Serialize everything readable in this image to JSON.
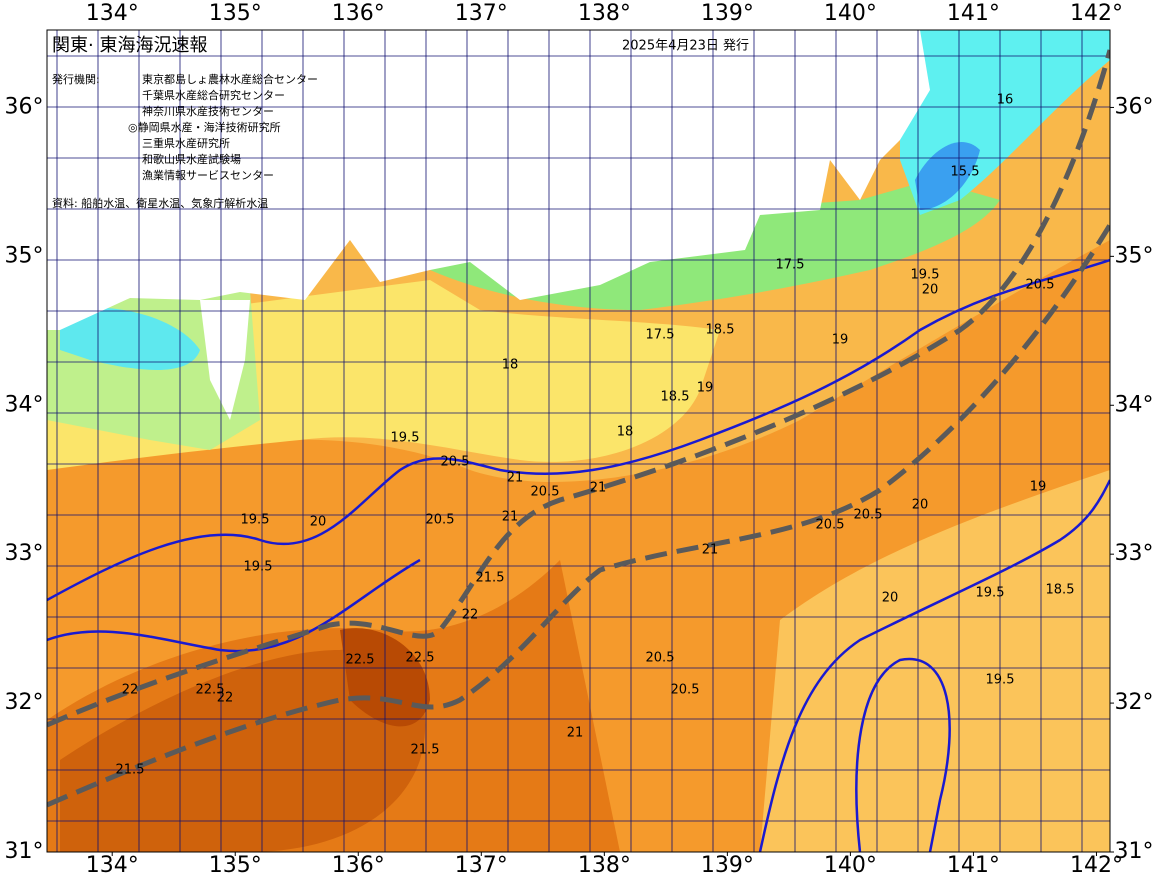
{
  "map": {
    "title": "関東· 東海海況速報",
    "date": "2025年4月23日 発行",
    "issuer_label": "発行機関:",
    "issuers": [
      "東京都島しょ農林水産総合センター",
      "千葉県水産総合研究センター",
      "神奈川県水産技術センター",
      "◎静岡県水産・海洋技術研究所",
      "三重県水産研究所",
      "和歌山県水産試験場",
      "漁業情報サービスセンター"
    ],
    "source": "資料: 船舶水温、衛星水温、気象庁解析水温",
    "xlim": [
      133.47,
      142.11
    ],
    "ylim": [
      31,
      36.52
    ],
    "xticks": [
      {
        "value": 134,
        "label": "134°"
      },
      {
        "value": 135,
        "label": "135°"
      },
      {
        "value": 136,
        "label": "136°"
      },
      {
        "value": 137,
        "label": "137°"
      },
      {
        "value": 138,
        "label": "138°"
      },
      {
        "value": 139,
        "label": "139°"
      },
      {
        "value": 140,
        "label": "140°"
      },
      {
        "value": 141,
        "label": "141°"
      },
      {
        "value": 142,
        "label": "142°"
      }
    ],
    "yticks": [
      {
        "value": 31,
        "label": "31°"
      },
      {
        "value": 32,
        "label": "32°"
      },
      {
        "value": 33,
        "label": "33°"
      },
      {
        "value": 34,
        "label": "34°"
      },
      {
        "value": 35,
        "label": "35°"
      },
      {
        "value": 36,
        "label": "36°"
      }
    ],
    "contour_labels": [
      "16",
      "15.5",
      "19.5",
      "20",
      "20.5",
      "17.5",
      "18",
      "18.5",
      "19",
      "17.5",
      "18.5",
      "19",
      "18",
      "19.5",
      "20.5",
      "21",
      "20.5",
      "21",
      "19.5",
      "19.5",
      "20",
      "20.5",
      "21",
      "21.5",
      "22",
      "22.5",
      "22.5",
      "22",
      "22.5",
      "21.5",
      "21",
      "20.5",
      "20.5",
      "20",
      "19.5",
      "19.5",
      "18.5",
      "19",
      "20.5",
      "20.5",
      "21",
      "20",
      "21.5",
      "22"
    ]
  }
}
